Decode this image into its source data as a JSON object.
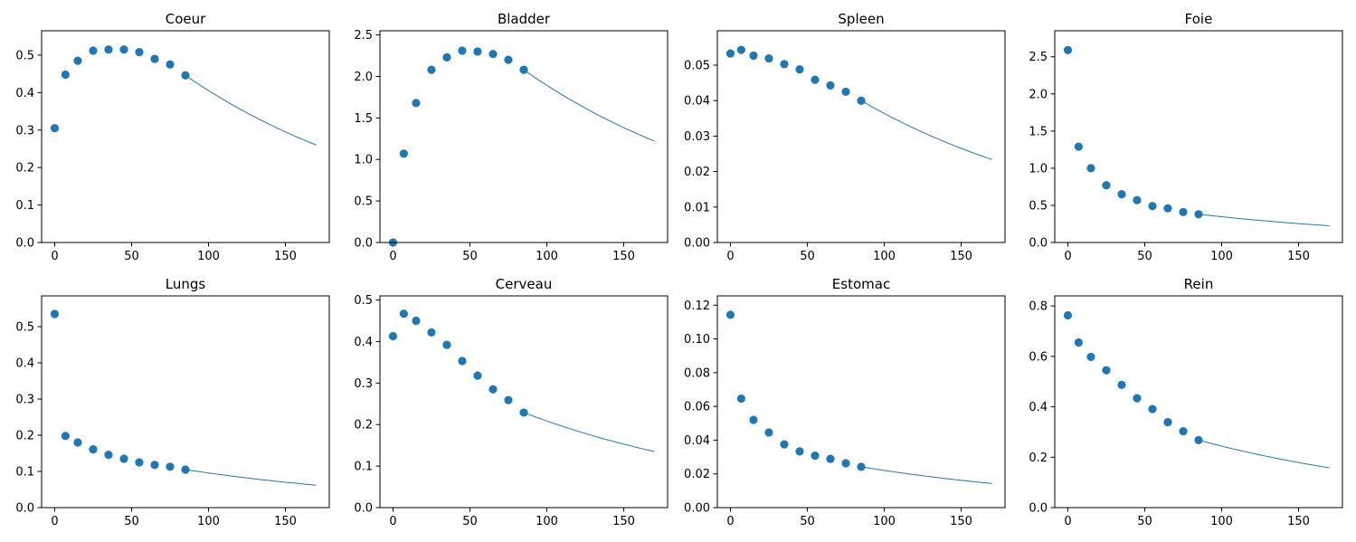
{
  "chart_data": [
    {
      "type": "scatter",
      "title": "Coeur",
      "xlim": [
        -8.5,
        178.5
      ],
      "ylim": [
        0,
        0.565
      ],
      "xticks": [
        0,
        50,
        100,
        150
      ],
      "yticks": [
        0,
        0.1,
        0.2,
        0.3,
        0.4,
        0.5
      ],
      "yticklabels": [
        "0.0",
        "0.1",
        "0.2",
        "0.3",
        "0.4",
        "0.5"
      ],
      "color": "#1f77b4",
      "x": [
        0,
        7,
        15,
        25,
        35,
        45,
        55,
        65,
        75,
        85
      ],
      "y": [
        0.305,
        0.448,
        0.485,
        0.512,
        0.515,
        0.515,
        0.508,
        0.49,
        0.475,
        0.446
      ],
      "fit": {
        "x_start": 85,
        "x_end": 170,
        "y_start": 0.446,
        "y_end": 0.26
      }
    },
    {
      "type": "scatter",
      "title": "Bladder",
      "xlim": [
        -8.5,
        178.5
      ],
      "ylim": [
        0,
        2.55
      ],
      "xticks": [
        0,
        50,
        100,
        150
      ],
      "yticks": [
        0,
        0.5,
        1.0,
        1.5,
        2.0,
        2.5
      ],
      "yticklabels": [
        "0.0",
        "0.5",
        "1.0",
        "1.5",
        "2.0",
        "2.5"
      ],
      "color": "#1f77b4",
      "x": [
        0,
        7,
        15,
        25,
        35,
        45,
        55,
        65,
        75,
        85
      ],
      "y": [
        0.0,
        1.07,
        1.68,
        2.08,
        2.23,
        2.31,
        2.3,
        2.27,
        2.2,
        2.08
      ],
      "fit": {
        "x_start": 85,
        "x_end": 170,
        "y_start": 2.08,
        "y_end": 1.22
      }
    },
    {
      "type": "scatter",
      "title": "Spleen",
      "xlim": [
        -8.5,
        178.5
      ],
      "ylim": [
        0,
        0.0597
      ],
      "xticks": [
        0,
        50,
        100,
        150
      ],
      "yticks": [
        0,
        0.01,
        0.02,
        0.03,
        0.04,
        0.05
      ],
      "yticklabels": [
        "0.00",
        "0.01",
        "0.02",
        "0.03",
        "0.04",
        "0.05"
      ],
      "color": "#1f77b4",
      "x": [
        0,
        7,
        15,
        25,
        35,
        45,
        55,
        65,
        75,
        85
      ],
      "y": [
        0.0533,
        0.0543,
        0.0527,
        0.0519,
        0.0503,
        0.0488,
        0.0459,
        0.0443,
        0.0425,
        0.04
      ],
      "fit": {
        "x_start": 85,
        "x_end": 170,
        "y_start": 0.04,
        "y_end": 0.0234
      }
    },
    {
      "type": "scatter",
      "title": "Foie",
      "xlim": [
        -8.5,
        178.5
      ],
      "ylim": [
        0,
        2.85
      ],
      "xticks": [
        0,
        50,
        100,
        150
      ],
      "yticks": [
        0,
        0.5,
        1.0,
        1.5,
        2.0,
        2.5
      ],
      "yticklabels": [
        "0.0",
        "0.5",
        "1.0",
        "1.5",
        "2.0",
        "2.5"
      ],
      "color": "#1f77b4",
      "x": [
        0,
        7,
        15,
        25,
        35,
        45,
        55,
        65,
        75,
        85
      ],
      "y": [
        2.59,
        1.29,
        1.0,
        0.77,
        0.65,
        0.57,
        0.49,
        0.46,
        0.41,
        0.38
      ],
      "fit": {
        "x_start": 85,
        "x_end": 170,
        "y_start": 0.38,
        "y_end": 0.225
      }
    },
    {
      "type": "scatter",
      "title": "Lungs",
      "xlim": [
        -8.5,
        178.5
      ],
      "ylim": [
        0,
        0.585
      ],
      "xticks": [
        0,
        50,
        100,
        150
      ],
      "yticks": [
        0,
        0.1,
        0.2,
        0.3,
        0.4,
        0.5
      ],
      "yticklabels": [
        "0.0",
        "0.1",
        "0.2",
        "0.3",
        "0.4",
        "0.5"
      ],
      "color": "#1f77b4",
      "x": [
        0,
        7,
        15,
        25,
        35,
        45,
        55,
        65,
        75,
        85
      ],
      "y": [
        0.535,
        0.198,
        0.18,
        0.161,
        0.146,
        0.135,
        0.125,
        0.118,
        0.113,
        0.105
      ],
      "fit": {
        "x_start": 85,
        "x_end": 170,
        "y_start": 0.105,
        "y_end": 0.062
      }
    },
    {
      "type": "scatter",
      "title": "Cerveau",
      "xlim": [
        -8.5,
        178.5
      ],
      "ylim": [
        0,
        0.51
      ],
      "xticks": [
        0,
        50,
        100,
        150
      ],
      "yticks": [
        0,
        0.1,
        0.2,
        0.3,
        0.4,
        0.5
      ],
      "yticklabels": [
        "0.0",
        "0.1",
        "0.2",
        "0.3",
        "0.4",
        "0.5"
      ],
      "color": "#1f77b4",
      "x": [
        0,
        7,
        15,
        25,
        35,
        45,
        55,
        65,
        75,
        85
      ],
      "y": [
        0.413,
        0.467,
        0.45,
        0.422,
        0.392,
        0.353,
        0.318,
        0.285,
        0.259,
        0.229
      ],
      "fit": {
        "x_start": 85,
        "x_end": 170,
        "y_start": 0.229,
        "y_end": 0.135
      }
    },
    {
      "type": "scatter",
      "title": "Estomac",
      "xlim": [
        -8.5,
        178.5
      ],
      "ylim": [
        0,
        0.1255
      ],
      "xticks": [
        0,
        50,
        100,
        150
      ],
      "yticks": [
        0,
        0.02,
        0.04,
        0.06,
        0.08,
        0.1,
        0.12
      ],
      "yticklabels": [
        "0.00",
        "0.02",
        "0.04",
        "0.06",
        "0.08",
        "0.10",
        "0.12"
      ],
      "color": "#1f77b4",
      "x": [
        0,
        7,
        15,
        25,
        35,
        45,
        55,
        65,
        75,
        85
      ],
      "y": [
        0.1143,
        0.0646,
        0.052,
        0.0445,
        0.0375,
        0.0333,
        0.0308,
        0.0289,
        0.0263,
        0.0242
      ],
      "fit": {
        "x_start": 85,
        "x_end": 170,
        "y_start": 0.0242,
        "y_end": 0.0143
      }
    },
    {
      "type": "scatter",
      "title": "Rein",
      "xlim": [
        -8.5,
        178.5
      ],
      "ylim": [
        0,
        0.84
      ],
      "xticks": [
        0,
        50,
        100,
        150
      ],
      "yticks": [
        0,
        0.2,
        0.4,
        0.6,
        0.8
      ],
      "yticklabels": [
        "0.0",
        "0.2",
        "0.4",
        "0.6",
        "0.8"
      ],
      "color": "#1f77b4",
      "x": [
        0,
        7,
        15,
        25,
        35,
        45,
        55,
        65,
        75,
        85
      ],
      "y": [
        0.763,
        0.655,
        0.598,
        0.545,
        0.487,
        0.434,
        0.391,
        0.339,
        0.303,
        0.268
      ],
      "fit": {
        "x_start": 85,
        "x_end": 170,
        "y_start": 0.268,
        "y_end": 0.158
      }
    }
  ]
}
